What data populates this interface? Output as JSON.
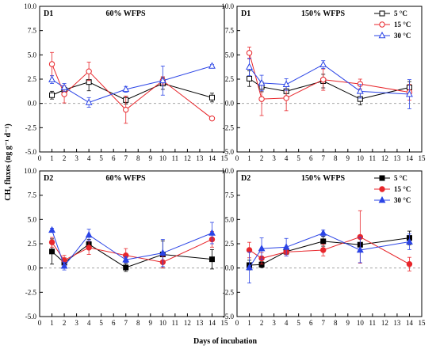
{
  "figure": {
    "ylabel": "CH₄ fluxes (ng g⁻¹ d⁻¹)",
    "xlabel": "Days of incubation"
  },
  "colors": {
    "5C": "#000000",
    "15C": "#e8262b",
    "30C": "#2b44e6",
    "zero_line": "#999999"
  },
  "chart_data": [
    {
      "type": "line",
      "panel_label": "D1",
      "title": "60% WFPS",
      "x": [
        1,
        2,
        4,
        7,
        10,
        14
      ],
      "xlim": [
        0,
        15
      ],
      "ylim": [
        -5.0,
        10.0
      ],
      "xticks": [
        0,
        1,
        2,
        3,
        4,
        5,
        6,
        7,
        8,
        9,
        10,
        11,
        12,
        13,
        14,
        15
      ],
      "yticks": [
        -5.0,
        -2.5,
        0.0,
        2.5,
        5.0,
        7.5,
        10.0
      ],
      "marker_fill": "open",
      "legend": false,
      "series": [
        {
          "name": "5 °C",
          "color_key": "5C",
          "marker": "square",
          "values": [
            0.85,
            1.4,
            2.2,
            0.35,
            2.05,
            0.6
          ],
          "errors": [
            0.4,
            0.3,
            0.9,
            0.4,
            0.6,
            0.45
          ]
        },
        {
          "name": "15 °C",
          "color_key": "15C",
          "marker": "circle",
          "values": [
            4.05,
            0.95,
            3.3,
            -0.65,
            2.35,
            -1.55
          ],
          "errors": [
            1.2,
            0.9,
            0.95,
            1.4,
            0.4,
            0.05
          ]
        },
        {
          "name": "30 °C",
          "color_key": "30C",
          "marker": "triangle",
          "values": [
            2.45,
            1.65,
            0.1,
            1.45,
            2.35,
            3.85
          ],
          "errors": [
            0.4,
            0.4,
            0.5,
            0.3,
            1.5,
            0.15
          ]
        }
      ]
    },
    {
      "type": "line",
      "panel_label": "D1",
      "title": "150% WFPS",
      "x": [
        1,
        2,
        4,
        7,
        10,
        14
      ],
      "xlim": [
        0,
        15
      ],
      "ylim": [
        -5.0,
        10.0
      ],
      "xticks": [
        0,
        1,
        2,
        3,
        4,
        5,
        6,
        7,
        8,
        9,
        10,
        11,
        12,
        13,
        14,
        15
      ],
      "yticks": [
        -5.0,
        -2.5,
        0.0,
        2.5,
        5.0,
        7.5,
        10.0
      ],
      "marker_fill": "open",
      "legend": true,
      "legend_position": "top-right",
      "series": [
        {
          "name": "5 °C",
          "color_key": "5C",
          "marker": "square",
          "values": [
            2.55,
            1.7,
            1.25,
            2.3,
            0.45,
            1.65
          ],
          "errors": [
            0.8,
            0.5,
            0.5,
            0.7,
            0.6,
            0.6
          ]
        },
        {
          "name": "15 °C",
          "color_key": "15C",
          "marker": "circle",
          "values": [
            5.2,
            0.45,
            0.55,
            2.45,
            2.0,
            1.15
          ],
          "errors": [
            0.6,
            1.7,
            1.3,
            1.1,
            0.5,
            0.8
          ]
        },
        {
          "name": "30 °C",
          "color_key": "30C",
          "marker": "triangle",
          "values": [
            3.75,
            2.1,
            1.95,
            4.0,
            1.25,
            0.95
          ],
          "errors": [
            0.9,
            0.8,
            0.6,
            0.4,
            0.7,
            1.5
          ]
        }
      ]
    },
    {
      "type": "line",
      "panel_label": "D2",
      "title": "60% WFPS",
      "x": [
        1,
        2,
        4,
        7,
        10,
        14
      ],
      "xlim": [
        0,
        15
      ],
      "ylim": [
        -5.0,
        10.0
      ],
      "xticks": [
        0,
        1,
        2,
        3,
        4,
        5,
        6,
        7,
        8,
        9,
        10,
        11,
        12,
        13,
        14,
        15
      ],
      "yticks": [
        -5.0,
        -2.5,
        0.0,
        2.5,
        5.0,
        7.5,
        10.0
      ],
      "marker_fill": "solid",
      "legend": false,
      "series": [
        {
          "name": "5 °C",
          "color_key": "5C",
          "marker": "square",
          "values": [
            1.7,
            0.55,
            2.45,
            0.05,
            1.4,
            0.9
          ],
          "errors": [
            1.3,
            0.5,
            0.5,
            0.4,
            1.4,
            1.0
          ]
        },
        {
          "name": "15 °C",
          "color_key": "15C",
          "marker": "circle",
          "values": [
            2.65,
            0.8,
            2.1,
            1.3,
            0.6,
            2.95
          ],
          "errors": [
            0.5,
            0.5,
            0.7,
            0.7,
            0.6,
            0.8
          ]
        },
        {
          "name": "30 °C",
          "color_key": "30C",
          "marker": "triangle",
          "values": [
            3.9,
            0.2,
            3.4,
            0.85,
            1.55,
            3.6
          ],
          "errors": [
            0.2,
            0.4,
            0.6,
            0.3,
            1.4,
            1.1
          ]
        }
      ]
    },
    {
      "type": "line",
      "panel_label": "D2",
      "title": "150% WFPS",
      "x": [
        1,
        2,
        4,
        7,
        10,
        14
      ],
      "xlim": [
        0,
        15
      ],
      "ylim": [
        -5.0,
        10.0
      ],
      "xticks": [
        0,
        1,
        2,
        3,
        4,
        5,
        6,
        7,
        8,
        9,
        10,
        11,
        12,
        13,
        14,
        15
      ],
      "yticks": [
        -5.0,
        -2.5,
        0.0,
        2.5,
        5.0,
        7.5,
        10.0
      ],
      "marker_fill": "solid",
      "legend": true,
      "legend_position": "top-right",
      "series": [
        {
          "name": "5 °C",
          "color_key": "5C",
          "marker": "square",
          "values": [
            0.3,
            0.35,
            1.7,
            2.75,
            2.4,
            3.1
          ],
          "errors": [
            0.5,
            0.3,
            0.3,
            0.5,
            0.6,
            0.7
          ]
        },
        {
          "name": "15 °C",
          "color_key": "15C",
          "marker": "circle",
          "values": [
            1.85,
            1.0,
            1.65,
            1.85,
            3.2,
            0.4
          ],
          "errors": [
            0.8,
            0.6,
            0.4,
            0.6,
            2.7,
            0.7
          ]
        },
        {
          "name": "30 °C",
          "color_key": "30C",
          "marker": "triangle",
          "values": [
            0.05,
            2.0,
            2.15,
            3.6,
            1.85,
            2.7
          ],
          "errors": [
            1.6,
            1.1,
            0.9,
            0.3,
            1.3,
            0.8
          ]
        }
      ]
    }
  ]
}
